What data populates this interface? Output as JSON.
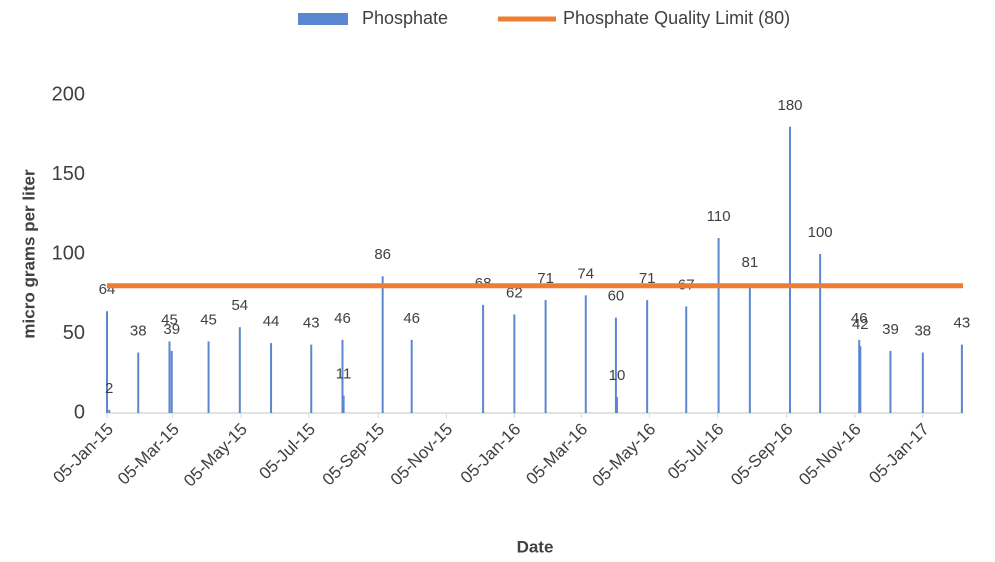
{
  "chart_data": {
    "type": "bar",
    "ylabel": "micro grams per liter",
    "xlabel": "Date",
    "x": [
      "2015-01-05",
      "2015-01-07",
      "2015-02-02",
      "2015-03-02",
      "2015-03-04",
      "2015-04-06",
      "2015-05-04",
      "2015-06-01",
      "2015-07-07",
      "2015-08-04",
      "2015-08-05",
      "2015-09-09",
      "2015-10-05",
      "2015-12-08",
      "2016-01-05",
      "2016-02-02",
      "2016-03-09",
      "2016-04-05",
      "2016-04-06",
      "2016-05-03",
      "2016-06-07",
      "2016-07-06",
      "2016-08-03",
      "2016-09-08",
      "2016-10-05",
      "2016-11-09",
      "2016-11-10",
      "2016-12-07",
      "2017-01-05",
      "2017-02-09"
    ],
    "series": [
      {
        "name": "Phosphate",
        "color": "#5b87d0",
        "values": [
          64,
          2,
          38,
          45,
          39,
          45,
          54,
          44,
          43,
          46,
          11,
          86,
          46,
          68,
          62,
          71,
          74,
          60,
          10,
          71,
          67,
          110,
          81,
          180,
          100,
          46,
          42,
          39,
          38,
          43
        ]
      }
    ],
    "threshold": {
      "name": "Phosphate Quality Limit  (80)",
      "value": 80,
      "color": "#ed7d31"
    },
    "xlim": [
      "2015-01-05",
      "2017-02-10"
    ],
    "xticks": [
      {
        "value": "2015-01-05",
        "label": "05-Jan-15"
      },
      {
        "value": "2015-03-05",
        "label": "05-Mar-15"
      },
      {
        "value": "2015-05-05",
        "label": "05-May-15"
      },
      {
        "value": "2015-07-05",
        "label": "05-Jul-15"
      },
      {
        "value": "2015-09-05",
        "label": "05-Sep-15"
      },
      {
        "value": "2015-11-05",
        "label": "05-Nov-15"
      },
      {
        "value": "2016-01-05",
        "label": "05-Jan-16"
      },
      {
        "value": "2016-03-05",
        "label": "05-Mar-16"
      },
      {
        "value": "2016-05-05",
        "label": "05-May-16"
      },
      {
        "value": "2016-07-05",
        "label": "05-Jul-16"
      },
      {
        "value": "2016-09-05",
        "label": "05-Sep-16"
      },
      {
        "value": "2016-11-05",
        "label": "05-Nov-16"
      },
      {
        "value": "2017-01-05",
        "label": "05-Jan-17"
      }
    ],
    "ylim": [
      0,
      200
    ],
    "yticks": [
      0,
      50,
      100,
      150,
      200
    ],
    "legend": "top"
  }
}
